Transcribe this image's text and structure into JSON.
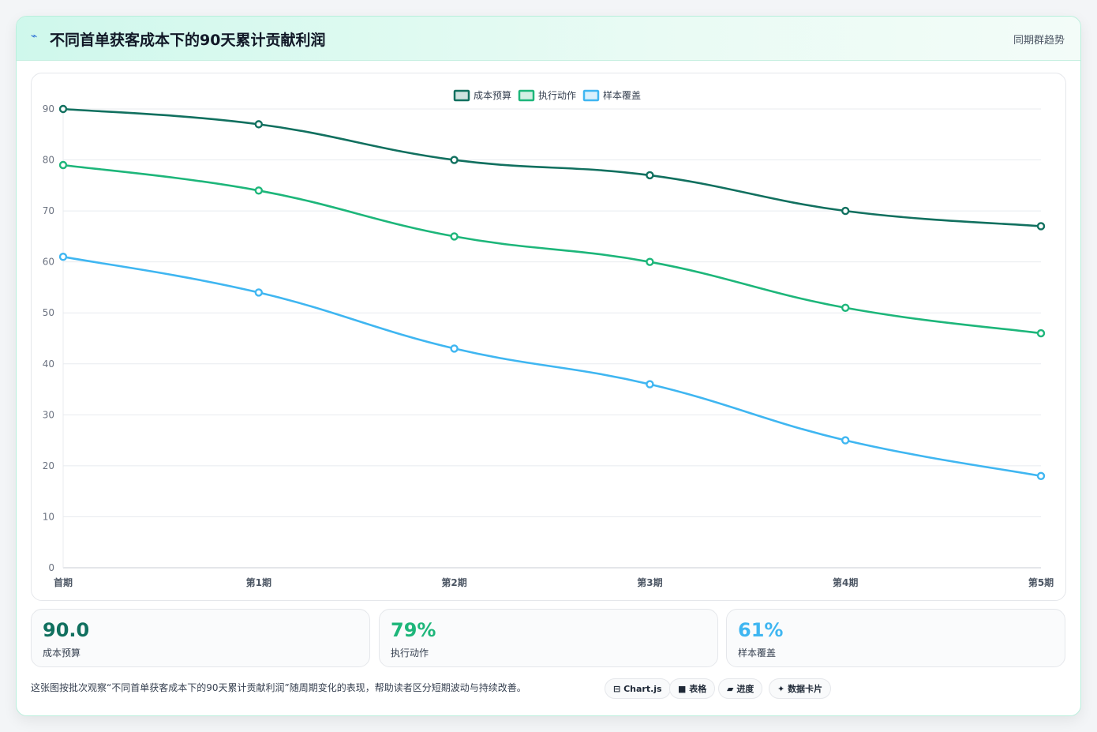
{
  "header": {
    "icon": "spark-icon",
    "title": "不同首单获客成本下的90天累计贡献利润",
    "tag": "同期群趋势"
  },
  "chart_data": {
    "type": "line",
    "categories": [
      "首期",
      "第1期",
      "第2期",
      "第3期",
      "第4期",
      "第5期"
    ],
    "series": [
      {
        "name": "成本预算",
        "color": "#11705f",
        "values": [
          90,
          87,
          80,
          77,
          70,
          67
        ]
      },
      {
        "name": "执行动作",
        "color": "#1db67a",
        "values": [
          79,
          74,
          65,
          60,
          51,
          46
        ]
      },
      {
        "name": "样本覆盖",
        "color": "#3fb6f1",
        "values": [
          61,
          54,
          43,
          36,
          25,
          18
        ]
      }
    ],
    "ylim": [
      0,
      90
    ],
    "yticks": [
      0,
      10,
      20,
      30,
      40,
      50,
      60,
      70,
      80,
      90
    ],
    "legend": "top-center",
    "grid": true
  },
  "stats": [
    {
      "value": "90.0",
      "label": "成本预算",
      "color": "#11705f"
    },
    {
      "value": "79%",
      "label": "执行动作",
      "color": "#1db67a"
    },
    {
      "value": "61%",
      "label": "样本覆盖",
      "color": "#3fb6f1"
    }
  ],
  "footnote": "这张图按批次观察“不同首单获客成本下的90天累计贡献利润”随周期变化的表现，帮助读者区分短期波动与持续改善。",
  "chips": [
    {
      "icon": "chart-icon",
      "glyph": "⊟",
      "label": "Chart.js"
    },
    {
      "icon": "table-icon",
      "glyph": "■",
      "label": "表格"
    },
    {
      "icon": "progress-icon",
      "glyph": "▰",
      "label": "进度"
    },
    {
      "icon": "card-icon",
      "glyph": "✦",
      "label": "数据卡片"
    }
  ]
}
